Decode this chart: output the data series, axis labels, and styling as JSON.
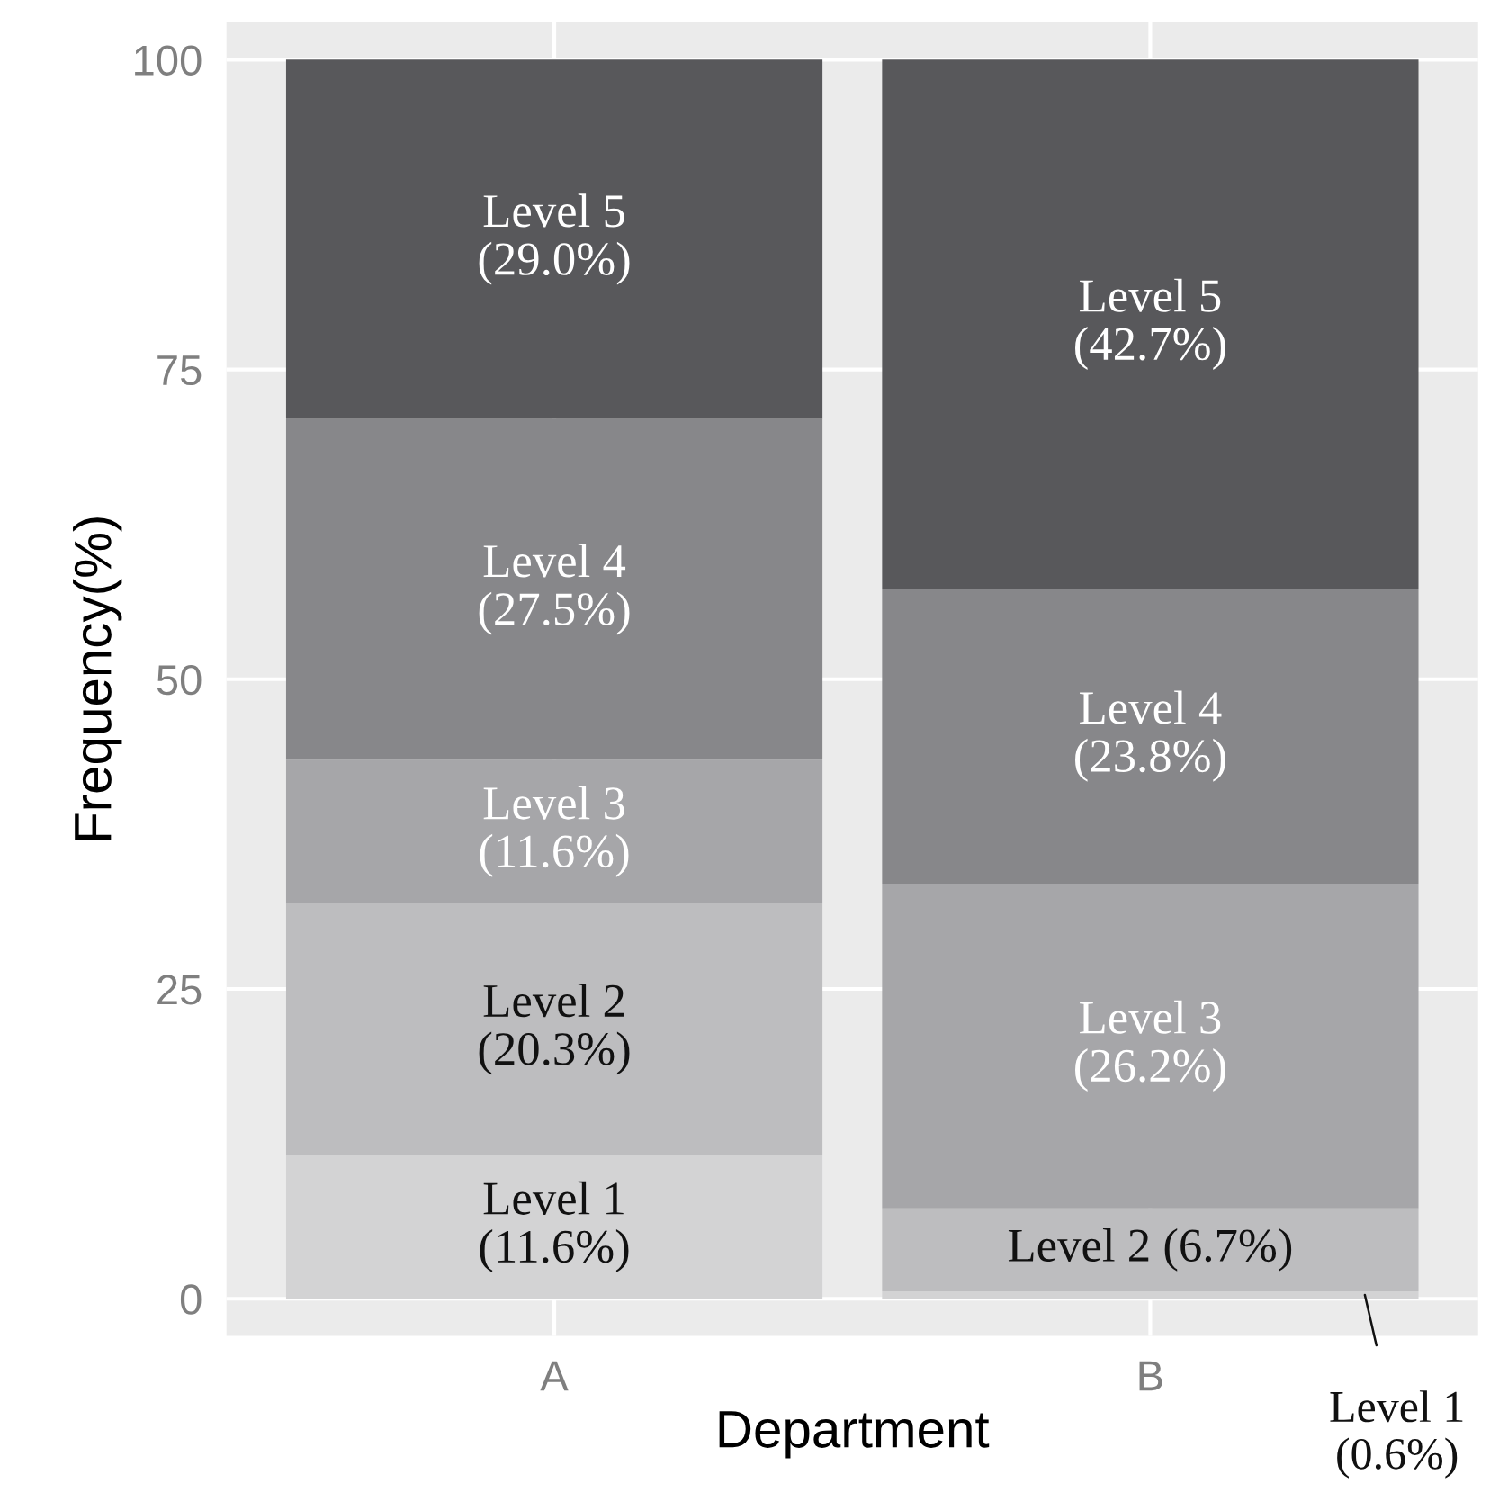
{
  "chart_data": {
    "type": "bar",
    "stacked": true,
    "xlabel": "Department",
    "ylabel": "Frequency(%)",
    "categories": [
      "A",
      "B"
    ],
    "series": [
      {
        "color": "#d3d3d4",
        "values": [
          11.6,
          0.6
        ],
        "value_labels": [
          "Level 1\n(11.6%)",
          "Level 1\n(0.6%)"
        ]
      },
      {
        "color": "#bdbdbf",
        "values": [
          20.3,
          6.7
        ],
        "value_labels": [
          "Level 2\n(20.3%)",
          "Level 2 (6.7%)"
        ]
      },
      {
        "color": "#a6a6a9",
        "values": [
          11.6,
          26.2
        ],
        "value_labels": [
          "Level 3\n(11.6%)",
          "Level 3\n(26.2%)"
        ]
      },
      {
        "color": "#87878a",
        "values": [
          27.5,
          23.8
        ],
        "value_labels": [
          "Level 4\n(27.5%)",
          "Level 4\n(23.8%)"
        ]
      },
      {
        "color": "#58585b",
        "values": [
          29.0,
          42.7
        ],
        "value_labels": [
          "Level 5\n(29.0%)",
          "Level 5\n(42.7%)"
        ]
      }
    ],
    "ylim": [
      -3,
      103
    ],
    "yticks": [
      0,
      25,
      50,
      75,
      100
    ],
    "grid": true
  }
}
